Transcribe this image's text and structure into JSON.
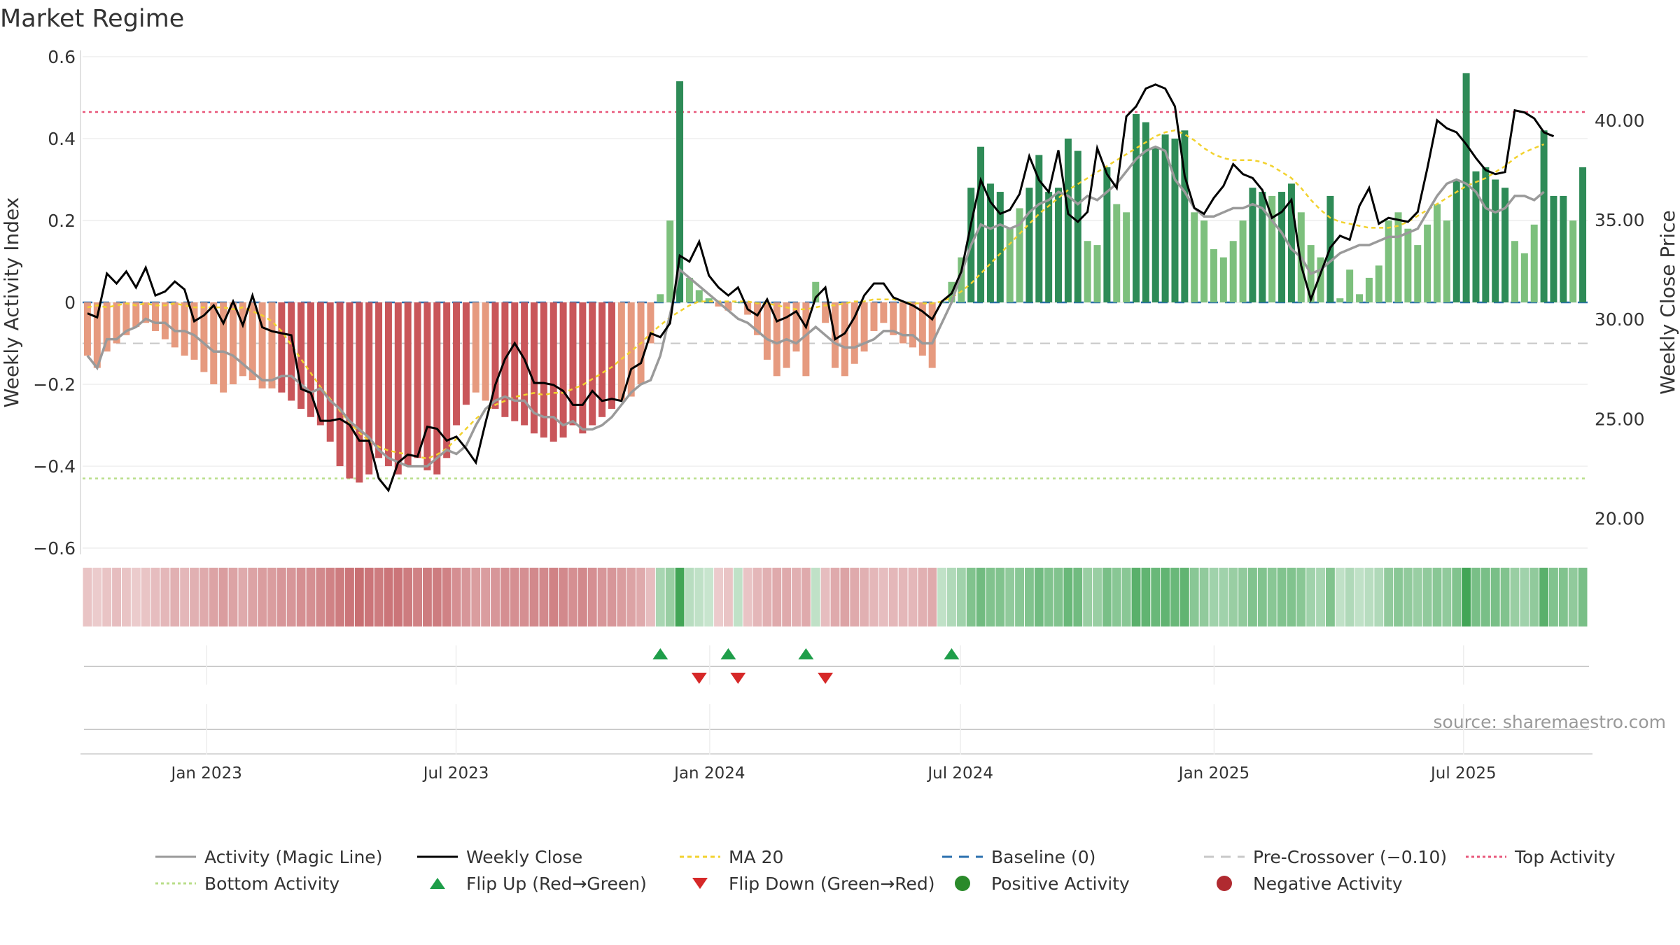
{
  "title": "Market Regime",
  "source": "source: sharemaestro.com",
  "colors": {
    "pos_strong": "#2e8b57",
    "pos_weak": "#7dc07d",
    "neg_strong": "#c9565a",
    "neg_weak": "#e69a7f",
    "activity_line": "#9a9a9a",
    "close_line": "#000000",
    "ma_line": "#f2d22e",
    "baseline": "#2b6fae",
    "precross": "#c8c8c8",
    "top": "#e8577a",
    "bottom": "#b9de8a",
    "flip_up": "#1f9e4a",
    "flip_down": "#d62828",
    "positive_dot": "#2a8a2a",
    "negative_dot": "#b02a30"
  },
  "chart_data": {
    "type": "bar",
    "title": "Market Regime",
    "ylabel_left": "Weekly Activity Index",
    "ylabel_right": "Weekly Close Price",
    "ylim_left": [
      -0.6,
      0.6
    ],
    "ylim_right": [
      18.5,
      43.2
    ],
    "yticks_left": [
      "0.6",
      "0.4",
      "0.2",
      "0",
      "−0.2",
      "−0.4",
      "−0.6"
    ],
    "yticks_left_values": [
      0.6,
      0.4,
      0.2,
      0,
      -0.2,
      -0.4,
      -0.6
    ],
    "yticks_right": [
      "40.00",
      "35.00",
      "30.00",
      "25.00",
      "20.00"
    ],
    "yticks_right_values": [
      40,
      35,
      30,
      25,
      20
    ],
    "x_start": "2022-10-03",
    "x_end": "2025-09-29",
    "xticks": [
      {
        "label": "Jan 2023",
        "date": "2023-01-01"
      },
      {
        "label": "Jul 2023",
        "date": "2023-07-01"
      },
      {
        "label": "Jan 2024",
        "date": "2024-01-01"
      },
      {
        "label": "Jul 2024",
        "date": "2024-07-01"
      },
      {
        "label": "Jan 2025",
        "date": "2025-01-01"
      },
      {
        "label": "Jul 2025",
        "date": "2025-07-01"
      }
    ],
    "reference_lines": {
      "top": 0.465,
      "bottom": -0.43,
      "baseline": 0,
      "pre_crossover": -0.1
    },
    "activity": [
      -0.13,
      -0.16,
      -0.12,
      -0.1,
      -0.08,
      -0.06,
      -0.05,
      -0.07,
      -0.09,
      -0.11,
      -0.13,
      -0.14,
      -0.17,
      -0.2,
      -0.22,
      -0.2,
      -0.18,
      -0.19,
      -0.21,
      -0.21,
      -0.22,
      -0.24,
      -0.26,
      -0.28,
      -0.3,
      -0.34,
      -0.4,
      -0.43,
      -0.44,
      -0.42,
      -0.38,
      -0.4,
      -0.42,
      -0.4,
      -0.38,
      -0.41,
      -0.42,
      -0.38,
      -0.3,
      -0.25,
      -0.22,
      -0.24,
      -0.26,
      -0.28,
      -0.29,
      -0.3,
      -0.32,
      -0.33,
      -0.34,
      -0.33,
      -0.3,
      -0.32,
      -0.3,
      -0.28,
      -0.26,
      -0.24,
      -0.23,
      -0.2,
      -0.1,
      0.02,
      0.2,
      0.54,
      0.06,
      0.03,
      0.01,
      -0.01,
      -0.02,
      0.0,
      -0.03,
      -0.08,
      -0.14,
      -0.18,
      -0.16,
      -0.12,
      -0.18,
      0.05,
      -0.05,
      -0.16,
      -0.18,
      -0.15,
      -0.12,
      -0.07,
      -0.05,
      -0.08,
      -0.1,
      -0.11,
      -0.13,
      -0.16,
      0.0,
      0.05,
      0.11,
      0.28,
      0.38,
      0.29,
      0.27,
      0.18,
      0.23,
      0.28,
      0.36,
      0.27,
      0.28,
      0.4,
      0.37,
      0.15,
      0.14,
      0.33,
      0.24,
      0.22,
      0.46,
      0.44,
      0.38,
      0.41,
      0.4,
      0.42,
      0.22,
      0.2,
      0.13,
      0.11,
      0.15,
      0.2,
      0.28,
      0.27,
      0.26,
      0.27,
      0.29,
      0.22,
      0.14,
      0.11,
      0.26,
      0.01,
      0.08,
      0.02,
      0.06,
      0.09,
      0.2,
      0.22,
      0.18,
      0.14,
      0.19,
      0.24,
      0.2,
      0.3,
      0.56,
      0.32,
      0.33,
      0.3,
      0.28,
      0.15,
      0.12,
      0.19,
      0.42,
      0.26,
      0.26,
      0.2,
      0.33
    ],
    "magic_line": [
      -0.13,
      -0.16,
      -0.09,
      -0.09,
      -0.07,
      -0.06,
      -0.04,
      -0.05,
      -0.05,
      -0.07,
      -0.07,
      -0.08,
      -0.1,
      -0.12,
      -0.12,
      -0.13,
      -0.15,
      -0.17,
      -0.19,
      -0.19,
      -0.18,
      -0.18,
      -0.2,
      -0.22,
      -0.21,
      -0.24,
      -0.26,
      -0.29,
      -0.31,
      -0.33,
      -0.36,
      -0.38,
      -0.39,
      -0.4,
      -0.4,
      -0.4,
      -0.38,
      -0.36,
      -0.37,
      -0.35,
      -0.3,
      -0.26,
      -0.24,
      -0.23,
      -0.24,
      -0.24,
      -0.27,
      -0.28,
      -0.28,
      -0.3,
      -0.29,
      -0.31,
      -0.31,
      -0.3,
      -0.28,
      -0.25,
      -0.22,
      -0.2,
      -0.19,
      -0.13,
      -0.03,
      0.08,
      0.06,
      0.04,
      0.02,
      0.0,
      -0.02,
      -0.04,
      -0.05,
      -0.07,
      -0.09,
      -0.1,
      -0.09,
      -0.1,
      -0.08,
      -0.06,
      -0.08,
      -0.1,
      -0.11,
      -0.11,
      -0.1,
      -0.09,
      -0.07,
      -0.07,
      -0.08,
      -0.08,
      -0.1,
      -0.1,
      -0.05,
      0.0,
      0.07,
      0.14,
      0.19,
      0.18,
      0.19,
      0.18,
      0.19,
      0.22,
      0.24,
      0.25,
      0.27,
      0.26,
      0.24,
      0.26,
      0.25,
      0.27,
      0.29,
      0.32,
      0.35,
      0.37,
      0.38,
      0.37,
      0.3,
      0.27,
      0.23,
      0.21,
      0.21,
      0.22,
      0.23,
      0.23,
      0.24,
      0.23,
      0.2,
      0.17,
      0.13,
      0.11,
      0.07,
      0.08,
      0.1,
      0.12,
      0.13,
      0.14,
      0.14,
      0.15,
      0.16,
      0.16,
      0.17,
      0.18,
      0.22,
      0.26,
      0.29,
      0.3,
      0.29,
      0.27,
      0.23,
      0.22,
      0.23,
      0.26,
      0.26,
      0.25,
      0.27
    ],
    "weekly_close": [
      30.3,
      30.1,
      32.3,
      31.8,
      32.4,
      31.6,
      32.6,
      31.2,
      31.4,
      31.9,
      31.5,
      29.9,
      30.2,
      30.7,
      29.8,
      30.9,
      29.7,
      31.2,
      29.6,
      29.4,
      29.3,
      29.2,
      26.5,
      26.3,
      24.9,
      24.9,
      25.0,
      24.7,
      23.9,
      23.9,
      22.0,
      21.4,
      22.8,
      23.2,
      23.1,
      24.6,
      24.5,
      23.9,
      24.1,
      23.5,
      22.8,
      24.8,
      26.7,
      28.0,
      28.8,
      28.0,
      26.8,
      26.8,
      26.7,
      26.4,
      25.7,
      25.7,
      26.4,
      25.9,
      26.0,
      25.9,
      27.5,
      27.8,
      29.3,
      29.1,
      29.8,
      33.2,
      32.9,
      33.9,
      32.2,
      31.6,
      31.2,
      31.6,
      30.5,
      30.2,
      31.0,
      29.9,
      30.1,
      30.4,
      29.6,
      31.1,
      31.6,
      29.0,
      29.3,
      30.1,
      31.2,
      31.8,
      31.8,
      31.1,
      30.9,
      30.7,
      30.4,
      30.0,
      30.9,
      31.3,
      32.4,
      34.8,
      37.0,
      35.9,
      35.3,
      35.5,
      36.3,
      38.2,
      37.0,
      36.4,
      38.5,
      35.3,
      34.9,
      35.4,
      38.6,
      37.3,
      36.6,
      40.2,
      40.7,
      41.6,
      41.8,
      41.6,
      40.7,
      37.2,
      35.6,
      35.3,
      36.1,
      36.7,
      37.8,
      37.3,
      37.1,
      36.5,
      35.1,
      35.4,
      36.0,
      32.7,
      31.0,
      32.3,
      33.6,
      34.2,
      34.0,
      35.7,
      36.6,
      34.8,
      35.1,
      35.0,
      34.9,
      35.4,
      37.6,
      40.0,
      39.6,
      39.4,
      38.8,
      38.1,
      37.5,
      37.3,
      37.4,
      40.5,
      40.4,
      40.1,
      39.4,
      39.2
    ],
    "ma20": [
      30.6,
      30.7,
      30.6,
      30.7,
      30.8,
      30.7,
      30.8,
      30.7,
      30.7,
      30.8,
      30.7,
      30.6,
      30.6,
      30.6,
      30.6,
      30.5,
      30.6,
      30.4,
      30.2,
      29.9,
      29.4,
      28.7,
      28.0,
      27.3,
      26.6,
      26.0,
      25.4,
      24.8,
      24.3,
      23.9,
      23.6,
      23.4,
      23.3,
      23.2,
      23.1,
      23.0,
      23.2,
      23.5,
      24.0,
      24.5,
      25.0,
      25.4,
      25.7,
      25.9,
      26.1,
      26.2,
      26.3,
      26.2,
      26.3,
      26.3,
      26.5,
      26.7,
      27.0,
      27.3,
      27.6,
      28.0,
      28.4,
      28.8,
      29.3,
      29.7,
      30.1,
      30.4,
      30.7,
      30.9,
      30.9,
      30.9,
      30.9,
      30.9,
      30.9,
      30.8,
      30.8,
      30.7,
      30.6,
      30.5,
      30.5,
      30.6,
      30.7,
      30.7,
      30.8,
      30.9,
      30.9,
      31.0,
      31.0,
      31.0,
      30.9,
      30.8,
      30.8,
      30.8,
      30.9,
      31.1,
      31.4,
      31.8,
      32.3,
      32.8,
      33.3,
      33.8,
      34.3,
      34.8,
      35.3,
      35.7,
      36.1,
      36.5,
      36.8,
      37.1,
      37.4,
      37.7,
      38.0,
      38.3,
      38.6,
      38.9,
      39.2,
      39.4,
      39.5,
      39.3,
      39.0,
      38.6,
      38.3,
      38.1,
      38.0,
      38.0,
      38.0,
      37.9,
      37.7,
      37.4,
      37.1,
      36.6,
      36.0,
      35.5,
      35.1,
      34.9,
      34.8,
      34.7,
      34.6,
      34.6,
      34.6,
      34.7,
      34.9,
      35.2,
      35.5,
      35.8,
      36.1,
      36.4,
      36.7,
      36.9,
      37.1,
      37.4,
      37.7,
      38.1,
      38.4,
      38.6,
      38.8
    ],
    "regime_intensity": [
      0.2,
      0.15,
      0.2,
      0.25,
      0.2,
      0.15,
      0.2,
      0.25,
      0.3,
      0.35,
      0.3,
      0.35,
      0.4,
      0.45,
      0.5,
      0.45,
      0.4,
      0.45,
      0.5,
      0.5,
      0.55,
      0.55,
      0.6,
      0.6,
      0.65,
      0.7,
      0.75,
      0.8,
      0.85,
      0.8,
      0.75,
      0.8,
      0.8,
      0.75,
      0.7,
      0.75,
      0.75,
      0.7,
      0.6,
      0.55,
      0.5,
      0.5,
      0.55,
      0.6,
      0.6,
      0.6,
      0.65,
      0.65,
      0.7,
      0.65,
      0.6,
      0.65,
      0.6,
      0.55,
      0.55,
      0.5,
      0.45,
      0.4,
      0.25,
      0.3,
      0.4,
      0.95,
      0.2,
      0.15,
      0.1,
      0.15,
      0.2,
      0.15,
      0.2,
      0.3,
      0.35,
      0.4,
      0.4,
      0.35,
      0.4,
      0.15,
      0.25,
      0.4,
      0.45,
      0.4,
      0.35,
      0.3,
      0.25,
      0.3,
      0.3,
      0.3,
      0.35,
      0.4,
      0.15,
      0.25,
      0.35,
      0.55,
      0.65,
      0.55,
      0.55,
      0.45,
      0.5,
      0.55,
      0.65,
      0.55,
      0.55,
      0.7,
      0.65,
      0.4,
      0.4,
      0.6,
      0.5,
      0.5,
      0.8,
      0.75,
      0.7,
      0.75,
      0.7,
      0.75,
      0.5,
      0.45,
      0.35,
      0.35,
      0.4,
      0.45,
      0.55,
      0.55,
      0.5,
      0.55,
      0.55,
      0.5,
      0.35,
      0.3,
      0.55,
      0.15,
      0.25,
      0.15,
      0.2,
      0.25,
      0.45,
      0.5,
      0.45,
      0.4,
      0.45,
      0.5,
      0.45,
      0.55,
      0.95,
      0.6,
      0.6,
      0.6,
      0.55,
      0.4,
      0.35,
      0.45,
      0.8,
      0.55,
      0.55,
      0.45,
      0.6
    ],
    "flip_up_weeks": [
      59,
      66,
      74,
      89
    ],
    "flip_down_weeks": [
      63,
      67,
      76
    ]
  },
  "legend": [
    {
      "label": "Activity (Magic Line)",
      "type": "line",
      "color": "#9a9a9a",
      "dash": ""
    },
    {
      "label": "Weekly Close",
      "type": "line",
      "color": "#000000",
      "dash": ""
    },
    {
      "label": "MA 20",
      "type": "line",
      "color": "#f2d22e",
      "dash": "6,5"
    },
    {
      "label": "Baseline (0)",
      "type": "line",
      "color": "#2b6fae",
      "dash": "14,10"
    },
    {
      "label": "Pre-Crossover (−0.10)",
      "type": "line",
      "color": "#c8c8c8",
      "dash": "14,10"
    },
    {
      "label": "Top Activity",
      "type": "line",
      "color": "#e8577a",
      "dash": "4,4"
    },
    {
      "label": "Bottom Activity",
      "type": "line",
      "color": "#b9de8a",
      "dash": "4,4"
    },
    {
      "label": "Flip Up (Red→Green)",
      "type": "tri-up",
      "color": "#1f9e4a"
    },
    {
      "label": "Flip Down (Green→Red)",
      "type": "tri-down",
      "color": "#d62828"
    },
    {
      "label": "Positive Activity",
      "type": "dot",
      "color": "#2a8a2a"
    },
    {
      "label": "Negative Activity",
      "type": "dot",
      "color": "#b02a30"
    }
  ]
}
